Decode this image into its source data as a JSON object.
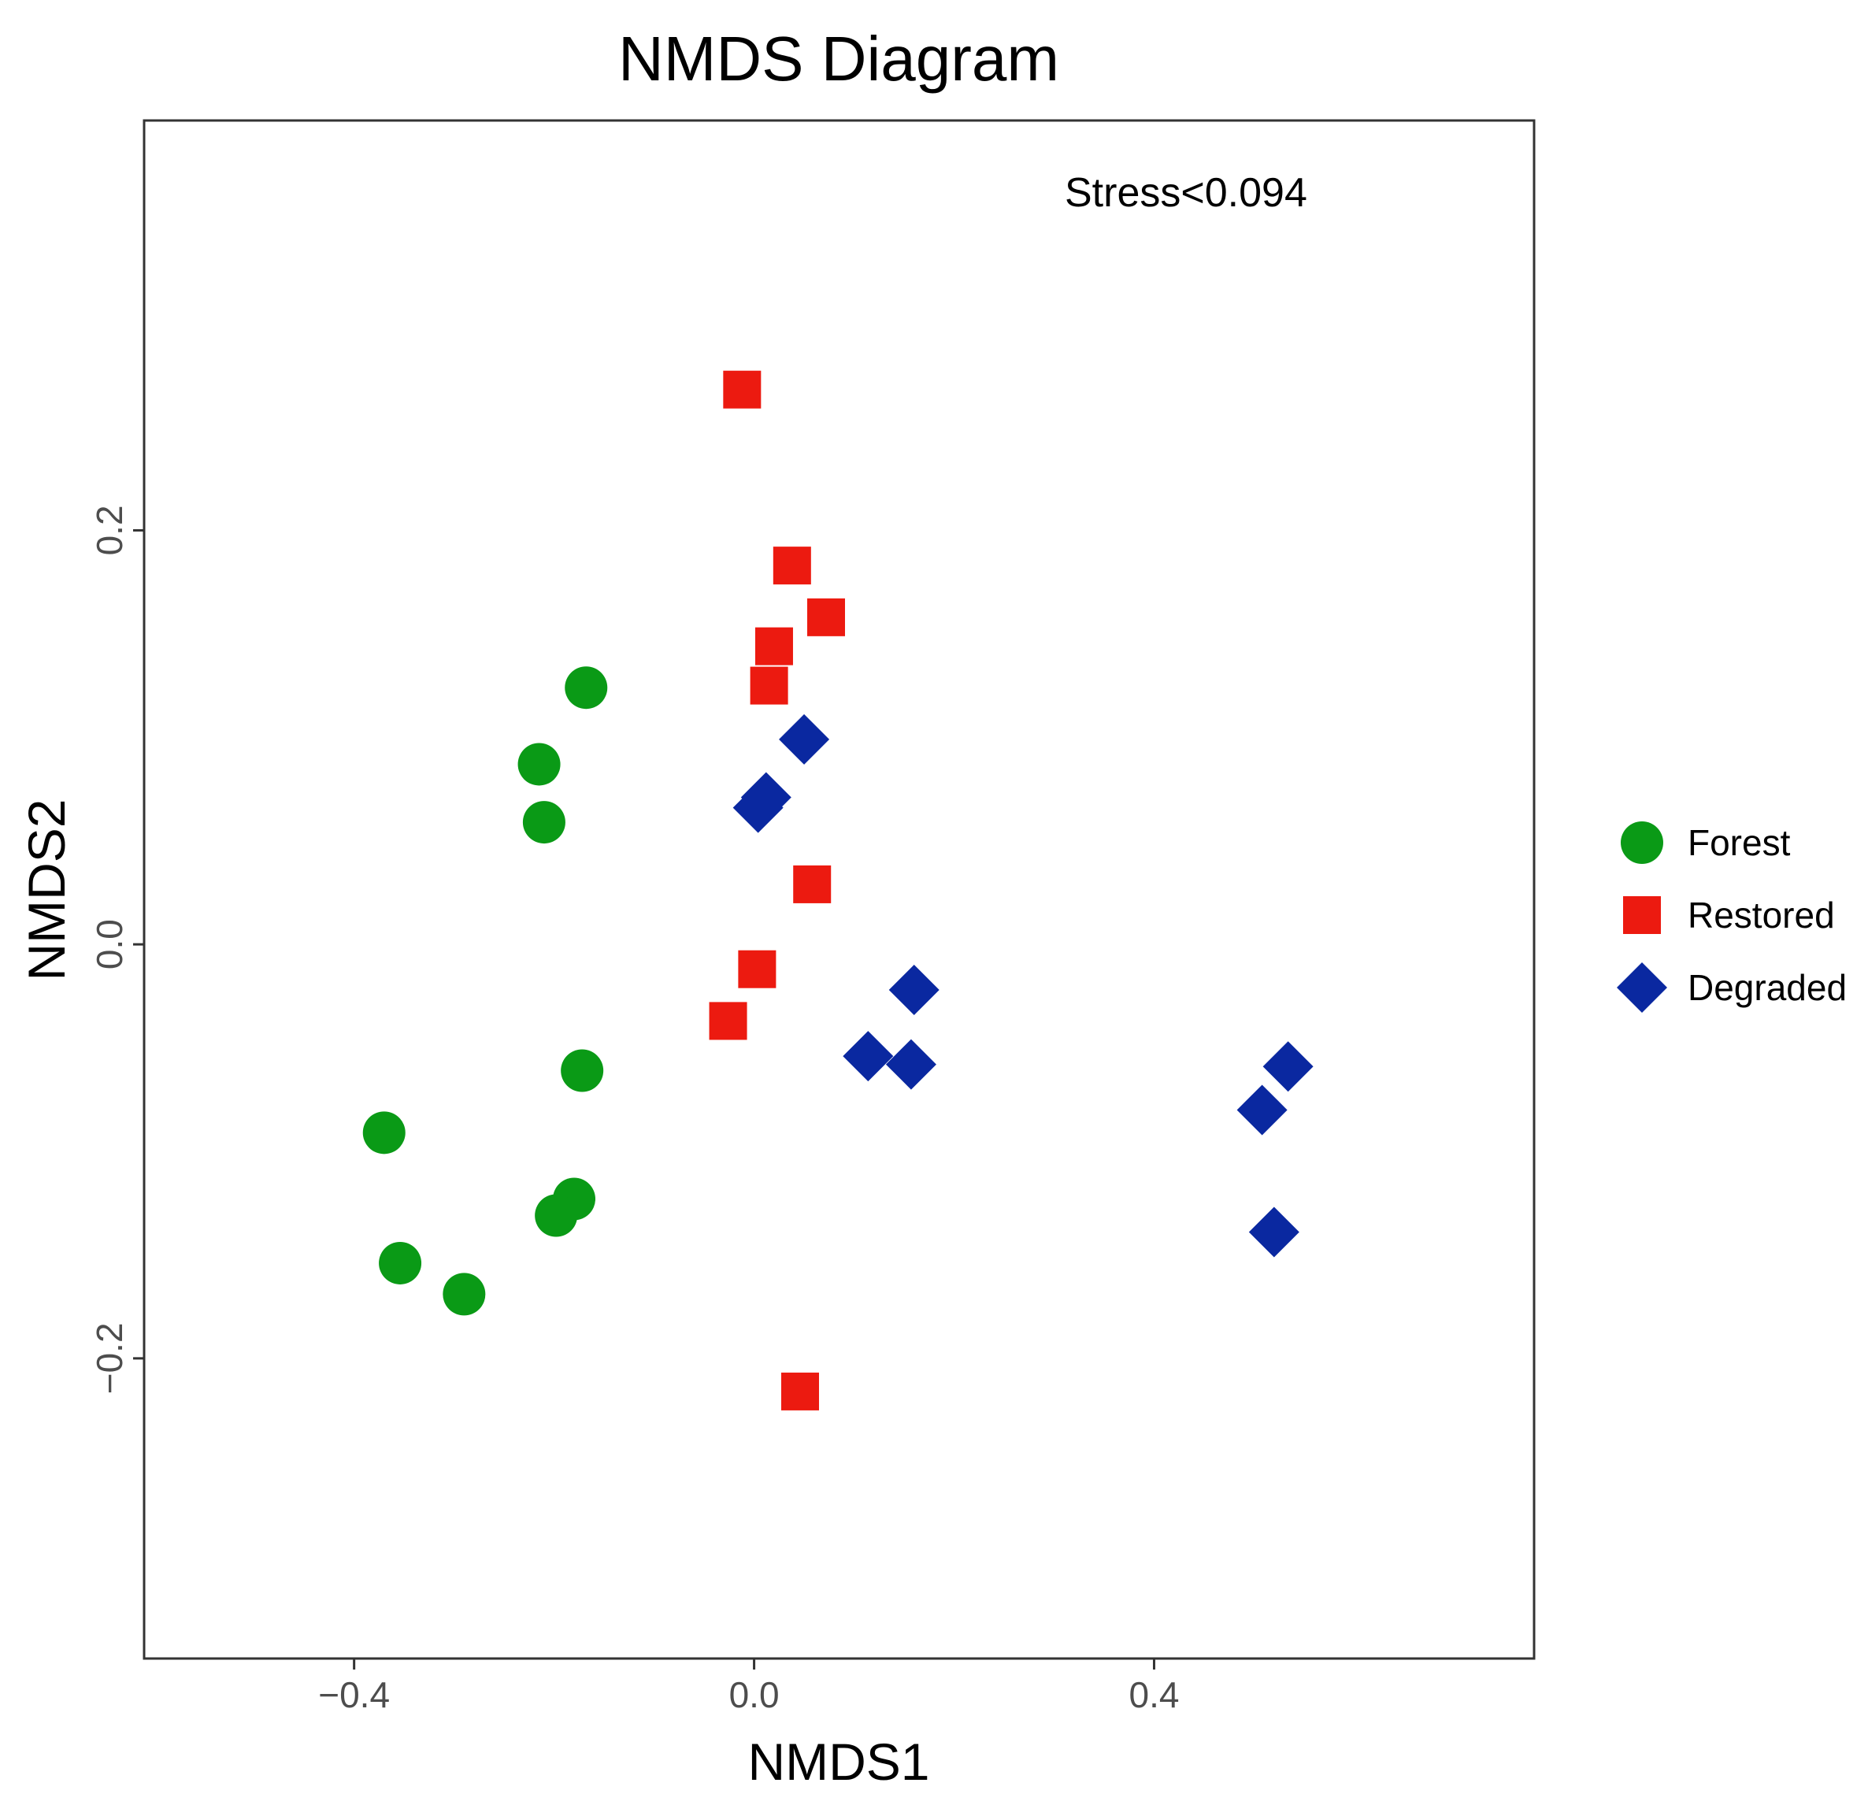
{
  "chart_data": {
    "type": "scatter",
    "title": "NMDS Diagram",
    "xlabel": "NMDS1",
    "ylabel": "NMDS2",
    "xlim": [
      -0.61,
      0.78
    ],
    "ylim": [
      -0.345,
      0.398
    ],
    "xticks": [
      {
        "value": -0.4,
        "label": "−0.4"
      },
      {
        "value": 0.0,
        "label": "0.0"
      },
      {
        "value": 0.4,
        "label": "0.4"
      }
    ],
    "yticks": [
      {
        "value": -0.2,
        "label": "−0.2"
      },
      {
        "value": 0.0,
        "label": "0.0"
      },
      {
        "value": 0.2,
        "label": "0.2"
      }
    ],
    "grid": false,
    "legend_position": "right",
    "annotation": "Stress<0.094",
    "series": [
      {
        "name": "Forest",
        "shape": "circle",
        "color": "#0a9a16",
        "points": [
          {
            "x": -0.168,
            "y": 0.124
          },
          {
            "x": -0.215,
            "y": 0.087
          },
          {
            "x": -0.21,
            "y": 0.059
          },
          {
            "x": -0.172,
            "y": -0.061
          },
          {
            "x": -0.37,
            "y": -0.091
          },
          {
            "x": -0.18,
            "y": -0.123
          },
          {
            "x": -0.198,
            "y": -0.131
          },
          {
            "x": -0.354,
            "y": -0.154
          },
          {
            "x": -0.29,
            "y": -0.169
          }
        ]
      },
      {
        "name": "Restored",
        "shape": "square",
        "color": "#ec1a10",
        "points": [
          {
            "x": -0.012,
            "y": 0.268
          },
          {
            "x": 0.038,
            "y": 0.183
          },
          {
            "x": 0.072,
            "y": 0.158
          },
          {
            "x": 0.02,
            "y": 0.144
          },
          {
            "x": 0.015,
            "y": 0.125
          },
          {
            "x": 0.058,
            "y": 0.029
          },
          {
            "x": 0.003,
            "y": -0.012
          },
          {
            "x": -0.026,
            "y": -0.037
          },
          {
            "x": 0.046,
            "y": -0.216
          }
        ]
      },
      {
        "name": "Degraded",
        "shape": "diamond",
        "color": "#0a28a0",
        "points": [
          {
            "x": 0.05,
            "y": 0.099
          },
          {
            "x": 0.004,
            "y": 0.066
          },
          {
            "x": 0.012,
            "y": 0.071
          },
          {
            "x": 0.16,
            "y": -0.022
          },
          {
            "x": 0.114,
            "y": -0.054
          },
          {
            "x": 0.157,
            "y": -0.058
          },
          {
            "x": 0.534,
            "y": -0.059
          },
          {
            "x": 0.508,
            "y": -0.08
          },
          {
            "x": 0.52,
            "y": -0.139
          }
        ]
      }
    ]
  }
}
